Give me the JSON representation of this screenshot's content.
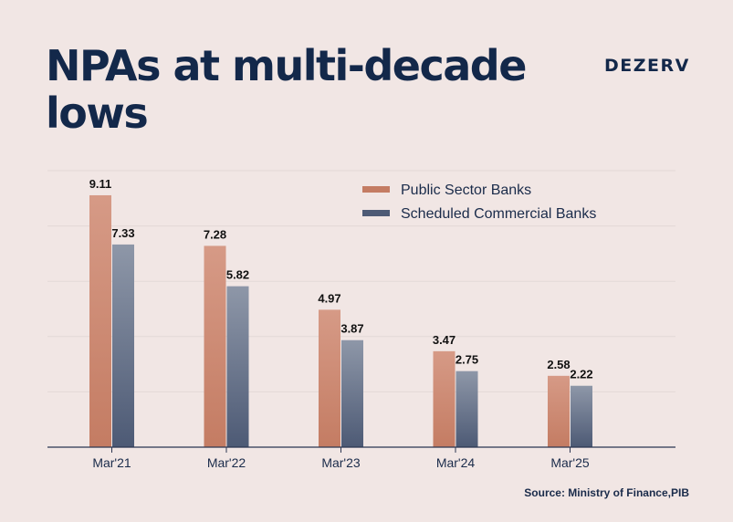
{
  "header": {
    "title_line1": "NPAs at multi-decade",
    "title_line2": "lows",
    "brand": "DEZERV"
  },
  "footer": {
    "source": "Source: Ministry of Finance,PIB"
  },
  "colors": {
    "title": "#13284a",
    "text": "#1a2b4a",
    "public_top": "#d69a86",
    "public_bottom": "#c47c63",
    "scheduled_top": "#8e97a8",
    "scheduled_bottom": "#4d5a75",
    "axis": "#2b3550",
    "grid": "#e3d8d6"
  },
  "chart_data": {
    "type": "bar",
    "categories": [
      "Mar'21",
      "Mar'22",
      "Mar'23",
      "Mar'24",
      "Mar'25"
    ],
    "series": [
      {
        "name": "Public Sector Banks",
        "values": [
          9.11,
          7.28,
          4.97,
          3.47,
          2.58
        ]
      },
      {
        "name": "Scheduled Commercial Banks",
        "values": [
          7.33,
          5.82,
          3.87,
          2.75,
          2.22
        ]
      }
    ],
    "ylim": [
      0,
      10
    ],
    "grid": true,
    "legend_position": "top-right",
    "title": "",
    "xlabel": "",
    "ylabel": ""
  }
}
